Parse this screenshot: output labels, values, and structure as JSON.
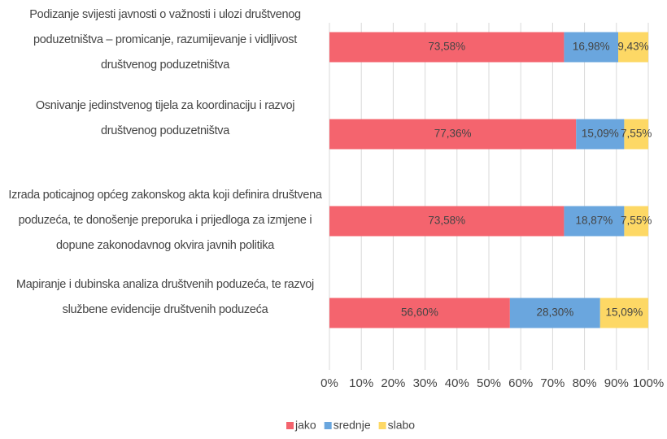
{
  "chart_data": {
    "type": "stacked_barh",
    "categories": [
      "Podizanje svijesti javnosti o važnosti i ulozi društvenog poduzetništva – promicanje, razumijevanje i vidljivost društvenog poduzetništva",
      "Osnivanje jedinstvenog tijela za koordinaciju i razvoj društvenog poduzetništva",
      "Izrada poticajnog općeg zakonskog akta koji definira društvena poduzeća, te donošenje preporuka i prijedloga za izmjene i dopune zakonodavnog okvira javnih politika",
      "Mapiranje i dubinska analiza društvenih poduzeća, te razvoj službene evidencije društvenih poduzeća"
    ],
    "series": [
      {
        "name": "jako",
        "color": "#f4646e",
        "values": [
          73.58,
          77.36,
          73.58,
          56.6
        ],
        "value_labels": [
          "73,58%",
          "77,36%",
          "73,58%",
          "56,60%"
        ]
      },
      {
        "name": "srednje",
        "color": "#6aa6de",
        "values": [
          16.98,
          15.09,
          18.87,
          28.3
        ],
        "value_labels": [
          "16,98%",
          "15,09%",
          "18,87%",
          "28,30%"
        ]
      },
      {
        "name": "slabo",
        "color": "#fdd865",
        "values": [
          9.43,
          7.55,
          7.55,
          15.09
        ],
        "value_labels": [
          "9,43%",
          "7,55%",
          "7,55%",
          "15,09%"
        ]
      }
    ],
    "xlim": [
      0,
      100
    ],
    "xticks": [
      {
        "value": 0,
        "label": "0%"
      },
      {
        "value": 10,
        "label": "10%"
      },
      {
        "value": 20,
        "label": "20%"
      },
      {
        "value": 30,
        "label": "30%"
      },
      {
        "value": 40,
        "label": "40%"
      },
      {
        "value": 50,
        "label": "50%"
      },
      {
        "value": 60,
        "label": "60%"
      },
      {
        "value": 70,
        "label": "70%"
      },
      {
        "value": 80,
        "label": "80%"
      },
      {
        "value": 90,
        "label": "90%"
      },
      {
        "value": 100,
        "label": "100%"
      }
    ],
    "grid": true,
    "legend": "bottom"
  }
}
